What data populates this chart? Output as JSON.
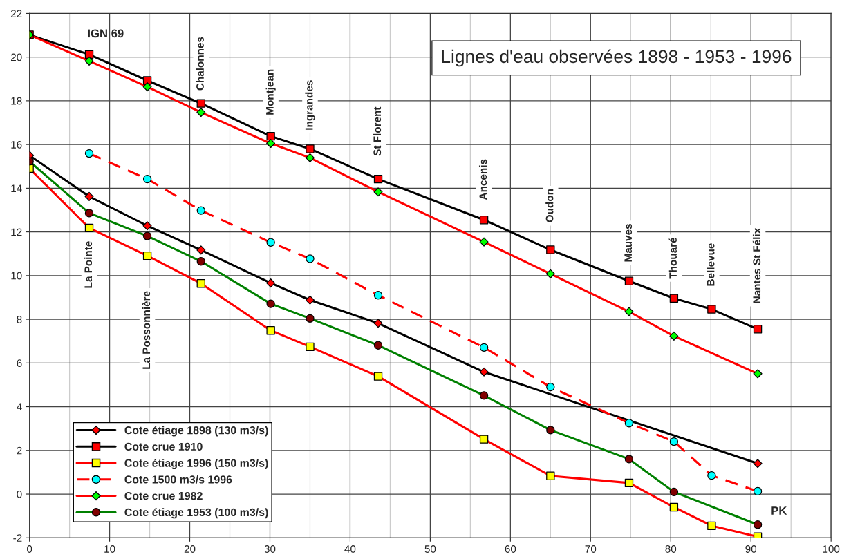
{
  "chart_data": {
    "type": "line",
    "title": "Lignes d'eau observées 1898 - 1953 - 1996",
    "xlabel": "PK",
    "ylabel": "IGN 69",
    "x": [
      0,
      7.45,
      14.7,
      21.4,
      30.1,
      35.0,
      43.5,
      56.7,
      65.0,
      74.8,
      80.4,
      85.1,
      90.85
    ],
    "xlim": [
      0,
      100
    ],
    "ylim": [
      -2,
      22
    ],
    "xticks": [
      0,
      {
        "value": 5,
        "label": null
      },
      10,
      {
        "value": 15,
        "label": null
      },
      20,
      {
        "value": 25,
        "label": null
      },
      30,
      {
        "value": 35,
        "label": null
      },
      40,
      {
        "value": 45,
        "label": null
      },
      50,
      {
        "value": 55,
        "label": null
      },
      60,
      {
        "value": 65,
        "label": null
      },
      70,
      {
        "value": 75,
        "label": null
      },
      80,
      {
        "value": 85,
        "label": null
      },
      90,
      {
        "value": 95,
        "label": null
      },
      100
    ],
    "yticks": [
      -2,
      0,
      2,
      4,
      6,
      8,
      10,
      12,
      14,
      16,
      18,
      20,
      22
    ],
    "grid": true,
    "legend": "bottom left",
    "series": [
      {
        "name": "Cote étiage 1898 (130 m3/s)",
        "color": "#000000",
        "marker": "diamond",
        "line_style": "solid",
        "colors": [
          "#ff0000",
          "#ff0000",
          "#ff0000",
          "#ff0000",
          "#ff0000",
          "#ff0000",
          "#ff0000",
          "#ff0000",
          "#ff0000",
          "#ff0000",
          "#ff0000",
          "#ff0000",
          "#ff0000"
        ],
        "values": [
          15.5,
          13.62,
          12.28,
          11.17,
          9.66,
          8.88,
          7.82,
          5.59,
          null,
          null,
          null,
          null,
          1.4
        ]
      },
      {
        "name": "Cote crue 1910",
        "color": "#000000",
        "marker": "square",
        "line_style": "solid",
        "colors": [
          "#ff0000",
          "#ff0000",
          "#ff0000",
          "#ff0000",
          "#ff0000",
          "#ff0000",
          "#ff0000",
          "#ff0000",
          "#ff0000",
          "#ff0000",
          "#ff0000",
          "#ff0000",
          "#ff0000"
        ],
        "values": [
          21.02,
          20.12,
          18.93,
          17.88,
          16.38,
          15.8,
          14.42,
          12.55,
          11.18,
          9.75,
          8.96,
          8.46,
          7.55
        ]
      },
      {
        "name": "Cote étiage 1996 (150 m3/s)",
        "color": "#ff0000",
        "marker": "square",
        "line_style": "solid",
        "colors": [
          "#ffff00",
          "#ffff00",
          "#ffff00",
          "#ffff00",
          "#ffff00",
          "#ffff00",
          "#ffff00",
          "#ffff00",
          "#ffff00",
          "#ffff00",
          "#ffff00",
          "#ffff00",
          "#ffff00"
        ],
        "values": [
          14.9,
          12.18,
          10.91,
          9.64,
          7.49,
          6.74,
          5.39,
          2.51,
          0.83,
          0.51,
          -0.6,
          -1.45,
          -1.95
        ]
      },
      {
        "name": "Cote 1500 m3/s 1996",
        "color": "#ff0000",
        "marker": "circle",
        "line_style": "dashed",
        "colors": [
          "#00ffff",
          "#00ffff",
          "#00ffff",
          "#00ffff",
          "#00ffff",
          "#00ffff",
          "#00ffff",
          "#00ffff",
          "#00ffff",
          "#00ffff",
          "#00ffff",
          "#00ffff",
          "#00ffff"
        ],
        "values": [
          null,
          15.59,
          14.42,
          12.98,
          11.52,
          10.77,
          9.1,
          6.71,
          4.9,
          3.25,
          2.4,
          0.85,
          0.13
        ]
      },
      {
        "name": "Cote crue 1982",
        "color": "#ff0000",
        "marker": "diamond",
        "line_style": "solid",
        "colors": [
          "#00ff00",
          "#00ff00",
          "#00ff00",
          "#00ff00",
          "#00ff00",
          "#00ff00",
          "#00ff00",
          "#00ff00",
          "#00ff00",
          "#00ff00",
          "#00ff00",
          "#00ff00",
          "#00ff00"
        ],
        "values": [
          21.02,
          19.82,
          18.64,
          17.47,
          16.05,
          15.39,
          13.83,
          11.54,
          10.08,
          8.35,
          7.23,
          null,
          5.51
        ]
      },
      {
        "name": "Cote étiage 1953 (100 m3/s)",
        "color": "#008000",
        "marker": "circle",
        "line_style": "solid",
        "colors": [
          "#800000",
          "#800000",
          "#800000",
          "#800000",
          "#800000",
          "#800000",
          "#800000",
          "#800000",
          "#800000",
          "#800000",
          "#800000",
          "#800000",
          "#800000"
        ],
        "values": [
          15.23,
          12.86,
          11.81,
          10.65,
          8.71,
          8.04,
          6.81,
          4.51,
          2.93,
          1.6,
          0.1,
          null,
          -1.4
        ]
      }
    ],
    "annotations": [
      "La Pointe",
      "La Possonnière",
      "Chalonnes",
      "Montjean",
      "Ingrandes",
      "St Florent",
      "Ancenis",
      "Oudon",
      "Mauves",
      "Thouaré",
      "Bellevue",
      "Nantes St Félix"
    ]
  }
}
